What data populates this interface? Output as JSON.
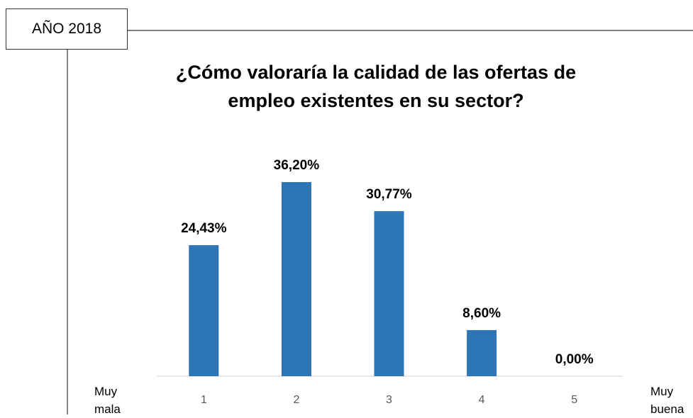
{
  "chart_data": {
    "type": "bar",
    "tag": "AÑO 2018",
    "title": "¿Cómo valoraría la calidad de las ofertas de empleo existentes en su sector?",
    "left_label": "Muy mala",
    "right_label": "Muy buena",
    "categories": [
      "1",
      "2",
      "3",
      "4",
      "5"
    ],
    "values": [
      24.43,
      36.2,
      30.77,
      8.6,
      0.0
    ],
    "value_labels": [
      "24,43%",
      "36,20%",
      "30,77%",
      "8,60%",
      "0,00%"
    ],
    "color": "#2e75b6"
  }
}
